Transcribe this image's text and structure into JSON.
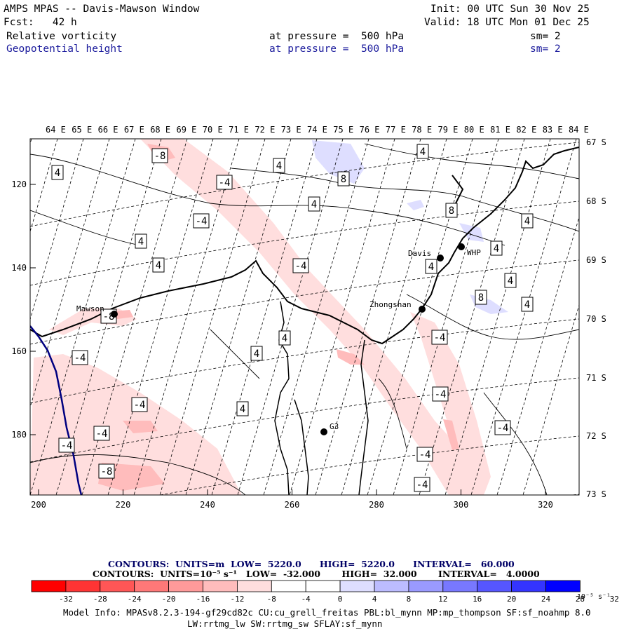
{
  "header": {
    "title": "AMPS MPAS -- Davis-Mawson Window",
    "init": "Init: 00 UTC Sun 30 Nov 25",
    "fcst": "Fcst:   42 h",
    "valid": "Valid: 18 UTC Mon 01 Dec 25",
    "field1": {
      "name": "Relative vorticity",
      "level": "at pressure =  500 hPa",
      "smooth": "sm= 2"
    },
    "field2": {
      "name": "Geopotential height",
      "level": "at pressure =  500 hPa",
      "smooth": "sm= 2"
    }
  },
  "map": {
    "lon_labels": [
      "64 E",
      "65 E",
      "66 E",
      "67 E",
      "68 E",
      "69 E",
      "70 E",
      "71 E",
      "72 E",
      "73 E",
      "74 E",
      "75 E",
      "76 E",
      "77 E",
      "78 E",
      "79 E",
      "80 E",
      "81 E",
      "82 E",
      "83 E",
      "84 E"
    ],
    "lat_labels": [
      "67 S",
      "68 S",
      "69 S",
      "70 S",
      "71 S",
      "72 S",
      "73 S"
    ],
    "x_ticks": [
      "200",
      "220",
      "240",
      "260",
      "280",
      "300",
      "320"
    ],
    "y_ticks": [
      "120",
      "140",
      "160",
      "180"
    ],
    "stations": [
      {
        "name": "Mawson"
      },
      {
        "name": "Davis"
      },
      {
        "name": "WHP"
      },
      {
        "name": "Zhongshan"
      },
      {
        "name": "G3"
      }
    ],
    "contour_labels": [
      "-8",
      "-4",
      "4",
      "8"
    ]
  },
  "legend": {
    "contours1": "CONTOURS:  UNITS=m  LOW=  5220.0      HIGH=  5220.0      INTERVAL=   60.000",
    "contours2": "CONTOURS:  UNITS=10⁻⁵ s⁻¹   LOW=  -32.000       HIGH=  32.000       INTERVAL=   4.0000",
    "colorbar": {
      "colors": [
        "#ff0000",
        "#ff3434",
        "#ff5656",
        "#ff7878",
        "#ff9a9a",
        "#ffbcbc",
        "#ffdede",
        "#ffffff",
        "#ffffff",
        "#dedeff",
        "#bcbcff",
        "#9a9aff",
        "#7878ff",
        "#5656ff",
        "#3434ff",
        "#0000ff"
      ],
      "labels": [
        "-32",
        "-28",
        "-24",
        "-20",
        "-16",
        "-12",
        "-8",
        "-4",
        "0",
        "4",
        "8",
        "12",
        "16",
        "20",
        "24",
        "28",
        "32"
      ],
      "unit": "10⁻⁵ s⁻¹"
    }
  },
  "footer": {
    "line1": "Model Info: MPASv8.2.3-194-gf29cd82c CU:cu_grell_freitas PBL:bl_mynn MP:mp_thompson SF:sf_noahmp 8.0",
    "line2": "LW:rrtmg_lw SW:rrtmg_sw SFLAY:sf_mynn"
  }
}
